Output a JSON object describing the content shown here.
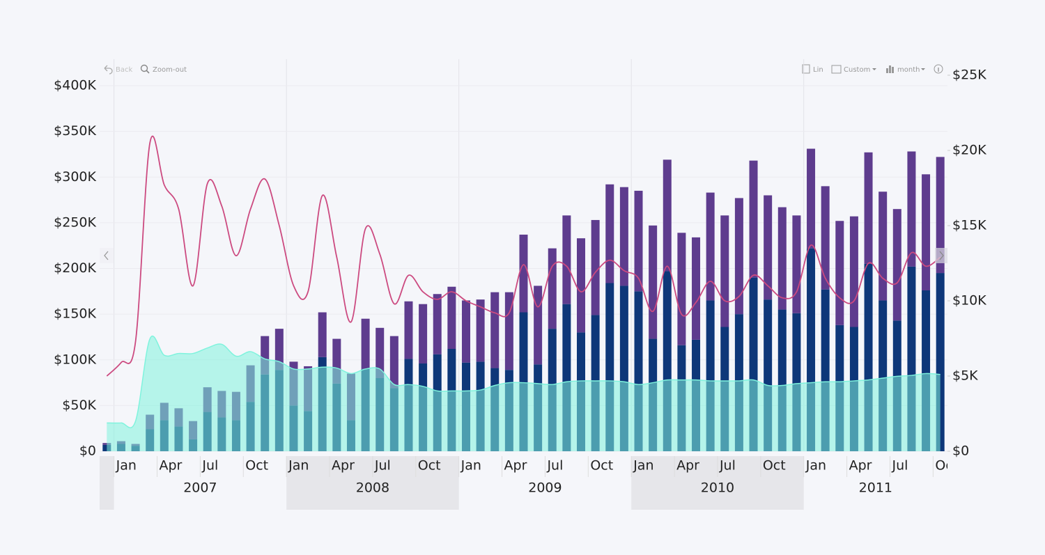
{
  "toolbar": {
    "back": "Back",
    "zoom_out": "Zoom-out",
    "scale": "Lin",
    "range": "Custom",
    "period": "month"
  },
  "chart_data": {
    "type": "bar",
    "categories": [
      null,
      "Jan",
      null,
      null,
      "Apr",
      null,
      null,
      "Jul",
      null,
      null,
      "Oct",
      null,
      null,
      "Jan",
      null,
      null,
      "Apr",
      null,
      null,
      "Jul",
      null,
      null,
      "Oct",
      null,
      null,
      "Jan",
      null,
      null,
      "Apr",
      null,
      null,
      "Jul",
      null,
      null,
      "Oct",
      null,
      null,
      "Jan",
      null,
      null,
      "Apr",
      null,
      null,
      "Jul",
      null,
      null,
      "Oct",
      null,
      null,
      "Jan",
      null,
      null,
      "Apr",
      null,
      null,
      "Jul",
      null,
      null,
      "Oct"
    ],
    "years": [
      "2007",
      "2008",
      "2009",
      "2010",
      "2011"
    ],
    "ylim": [
      0,
      400000
    ],
    "yticks": [
      {
        "value": 0,
        "label": "$0"
      },
      {
        "value": 50000,
        "label": "$50K"
      },
      {
        "value": 100000,
        "label": "$100K"
      },
      {
        "value": 150000,
        "label": "$150K"
      },
      {
        "value": 200000,
        "label": "$200K"
      },
      {
        "value": 250000,
        "label": "$250K"
      },
      {
        "value": 300000,
        "label": "$300K"
      },
      {
        "value": 350000,
        "label": "$350K"
      },
      {
        "value": 400000,
        "label": "$400K"
      }
    ],
    "y2lim": [
      0,
      25000
    ],
    "y2ticks": [
      {
        "value": 0,
        "label": "$0"
      },
      {
        "value": 5000,
        "label": "$5K"
      },
      {
        "value": 10000,
        "label": "$10K"
      },
      {
        "value": 15000,
        "label": "$15K"
      },
      {
        "value": 20000,
        "label": "$20K"
      },
      {
        "value": 25000,
        "label": "$25K"
      }
    ],
    "grid": true,
    "series": [
      {
        "type": "bar",
        "color": "#0e3779",
        "values": [
          7000,
          8000,
          6000,
          24000,
          34000,
          27000,
          13000,
          43000,
          37000,
          34000,
          54000,
          84000,
          89000,
          50000,
          44000,
          103000,
          74000,
          34000,
          90000,
          80000,
          69000,
          101000,
          96000,
          106000,
          112000,
          97000,
          98000,
          91000,
          89000,
          152000,
          95000,
          134000,
          161000,
          130000,
          149000,
          184000,
          181000,
          175000,
          123000,
          197000,
          116000,
          122000,
          165000,
          136000,
          150000,
          190000,
          166000,
          155000,
          151000,
          222000,
          177000,
          138000,
          136000,
          205000,
          165000,
          143000,
          202000,
          176000,
          195000
        ]
      },
      {
        "type": "bar",
        "color": "#5e3c8e",
        "values": [
          2000,
          3000,
          2000,
          16000,
          19000,
          20000,
          20000,
          27000,
          29000,
          31000,
          40000,
          42000,
          45000,
          48000,
          49000,
          49000,
          49000,
          51000,
          55000,
          55000,
          57000,
          63000,
          65000,
          66000,
          68000,
          68000,
          68000,
          83000,
          85000,
          85000,
          86000,
          88000,
          97000,
          103000,
          104000,
          108000,
          108000,
          110000,
          124000,
          122000,
          123000,
          112000,
          118000,
          122000,
          127000,
          128000,
          114000,
          112000,
          107000,
          109000,
          113000,
          114000,
          121000,
          122000,
          119000,
          122000,
          126000,
          127000,
          127000
        ]
      },
      {
        "type": "area",
        "color": "#7ff3dd",
        "values": [
          31000,
          31000,
          33000,
          123000,
          105000,
          107000,
          107000,
          113000,
          117000,
          104000,
          109000,
          101000,
          98000,
          90000,
          90000,
          92000,
          91000,
          85000,
          90000,
          90000,
          73000,
          73000,
          71000,
          66000,
          66000,
          66000,
          67000,
          72000,
          75000,
          75000,
          74000,
          73000,
          76000,
          77000,
          77000,
          77000,
          76000,
          73000,
          75000,
          78000,
          78000,
          78000,
          77000,
          77000,
          77000,
          78000,
          72000,
          72000,
          74000,
          75000,
          76000,
          76000,
          77000,
          78000,
          80000,
          82000,
          83000,
          85000,
          84000
        ]
      },
      {
        "type": "line",
        "axis": "y2",
        "color": "#cc4a80",
        "values": [
          5000,
          5900,
          7300,
          20500,
          17700,
          16100,
          11000,
          17800,
          16300,
          13000,
          16100,
          18100,
          15000,
          11000,
          10600,
          17000,
          12900,
          8600,
          14800,
          13100,
          9800,
          11700,
          10600,
          10100,
          10600,
          10000,
          9600,
          9200,
          9200,
          12400,
          9600,
          12300,
          12300,
          10600,
          11900,
          12700,
          12000,
          11500,
          9300,
          12300,
          9100,
          9900,
          11300,
          10000,
          10300,
          11700,
          11000,
          10200,
          10600,
          13700,
          11500,
          10200,
          10000,
          12500,
          11500,
          11200,
          13200,
          12300,
          12900
        ]
      }
    ]
  }
}
